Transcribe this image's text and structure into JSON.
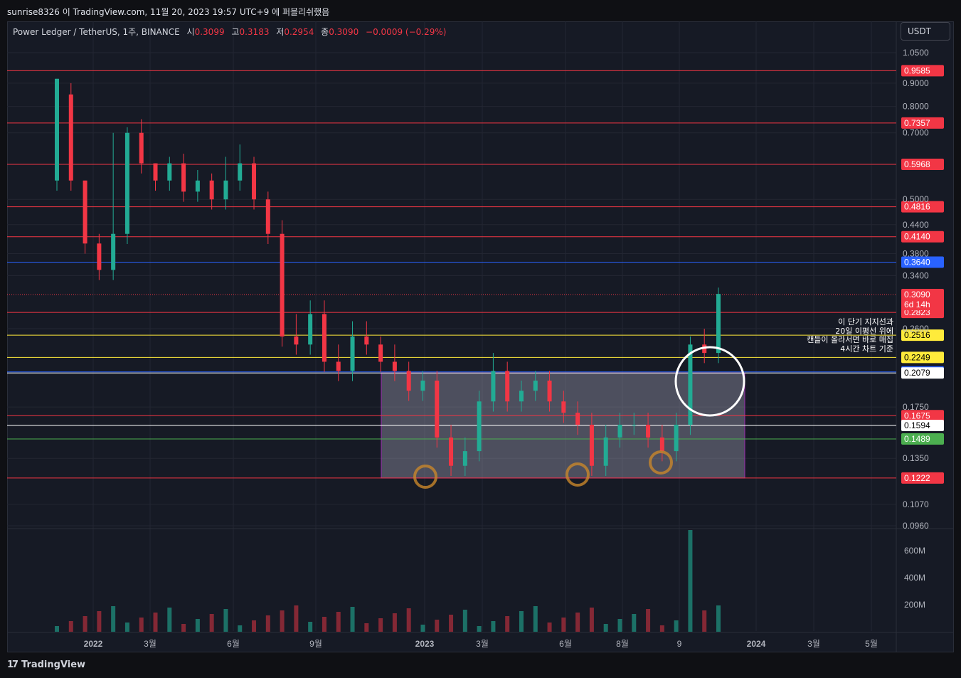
{
  "header": {
    "text": "sunrise8326 이 TradingView.com, 11월 20, 2023 19:57 UTC+9 에 퍼블리쉬했음"
  },
  "legend": {
    "symbol": "Power Ledger / TetherUS, 1주, BINANCE",
    "open_label": "시",
    "open": "0.3099",
    "high_label": "고",
    "high": "0.3183",
    "low_label": "저",
    "low": "0.2954",
    "close_label": "종",
    "close": "0.3090",
    "change": "−0.0009 (−0.29%)"
  },
  "currency_button": "USDT",
  "annotation": [
    "이 단기 지지선과",
    "20일 이평선 위에",
    "캔들이 올라서면 바로 매집",
    "4시간 차트 기준"
  ],
  "footer": {
    "brand": "TradingView"
  },
  "colors": {
    "up": "#22ab94",
    "down": "#f23645",
    "bg": "#161a25",
    "grid": "#232632"
  },
  "chart_data": {
    "type": "candlestick",
    "y_scale": "log",
    "y_ticks": [
      "1.0500",
      "0.9000",
      "0.8000",
      "0.7000",
      "0.5000",
      "0.4400",
      "0.3800",
      "0.3400",
      "0.2600",
      "0.1750",
      "0.1350",
      "0.1070",
      "0.0960"
    ],
    "x_ticks": [
      "2022",
      "3월",
      "6월",
      "9월",
      "2023",
      "3월",
      "6월",
      "8월",
      "9",
      "2024",
      "3월",
      "5월"
    ],
    "volume_ticks": [
      "600M",
      "400M",
      "200M"
    ],
    "price_lines": [
      {
        "value": "0.9585",
        "color": "#f23645"
      },
      {
        "value": "0.7357",
        "color": "#f23645"
      },
      {
        "value": "0.5968",
        "color": "#f23645"
      },
      {
        "value": "0.4816",
        "color": "#f23645"
      },
      {
        "value": "0.4140",
        "color": "#f23645"
      },
      {
        "value": "0.3640",
        "color": "#2962ff"
      },
      {
        "value": "0.2823",
        "color": "#f23645"
      },
      {
        "value": "0.2516",
        "color": "#ffeb3b"
      },
      {
        "value": "0.2249",
        "color": "#ffeb3b"
      },
      {
        "value": "0.2090",
        "color": "#2962ff"
      },
      {
        "value": "0.2079",
        "color": "#ffffff"
      },
      {
        "value": "0.1675",
        "color": "#f23645"
      },
      {
        "value": "0.1594",
        "color": "#ffffff"
      },
      {
        "value": "0.1489",
        "color": "#4caf50"
      },
      {
        "value": "0.1222",
        "color": "#f23645"
      }
    ],
    "current_price": {
      "value": "0.3090",
      "countdown": "6d 14h"
    }
  }
}
